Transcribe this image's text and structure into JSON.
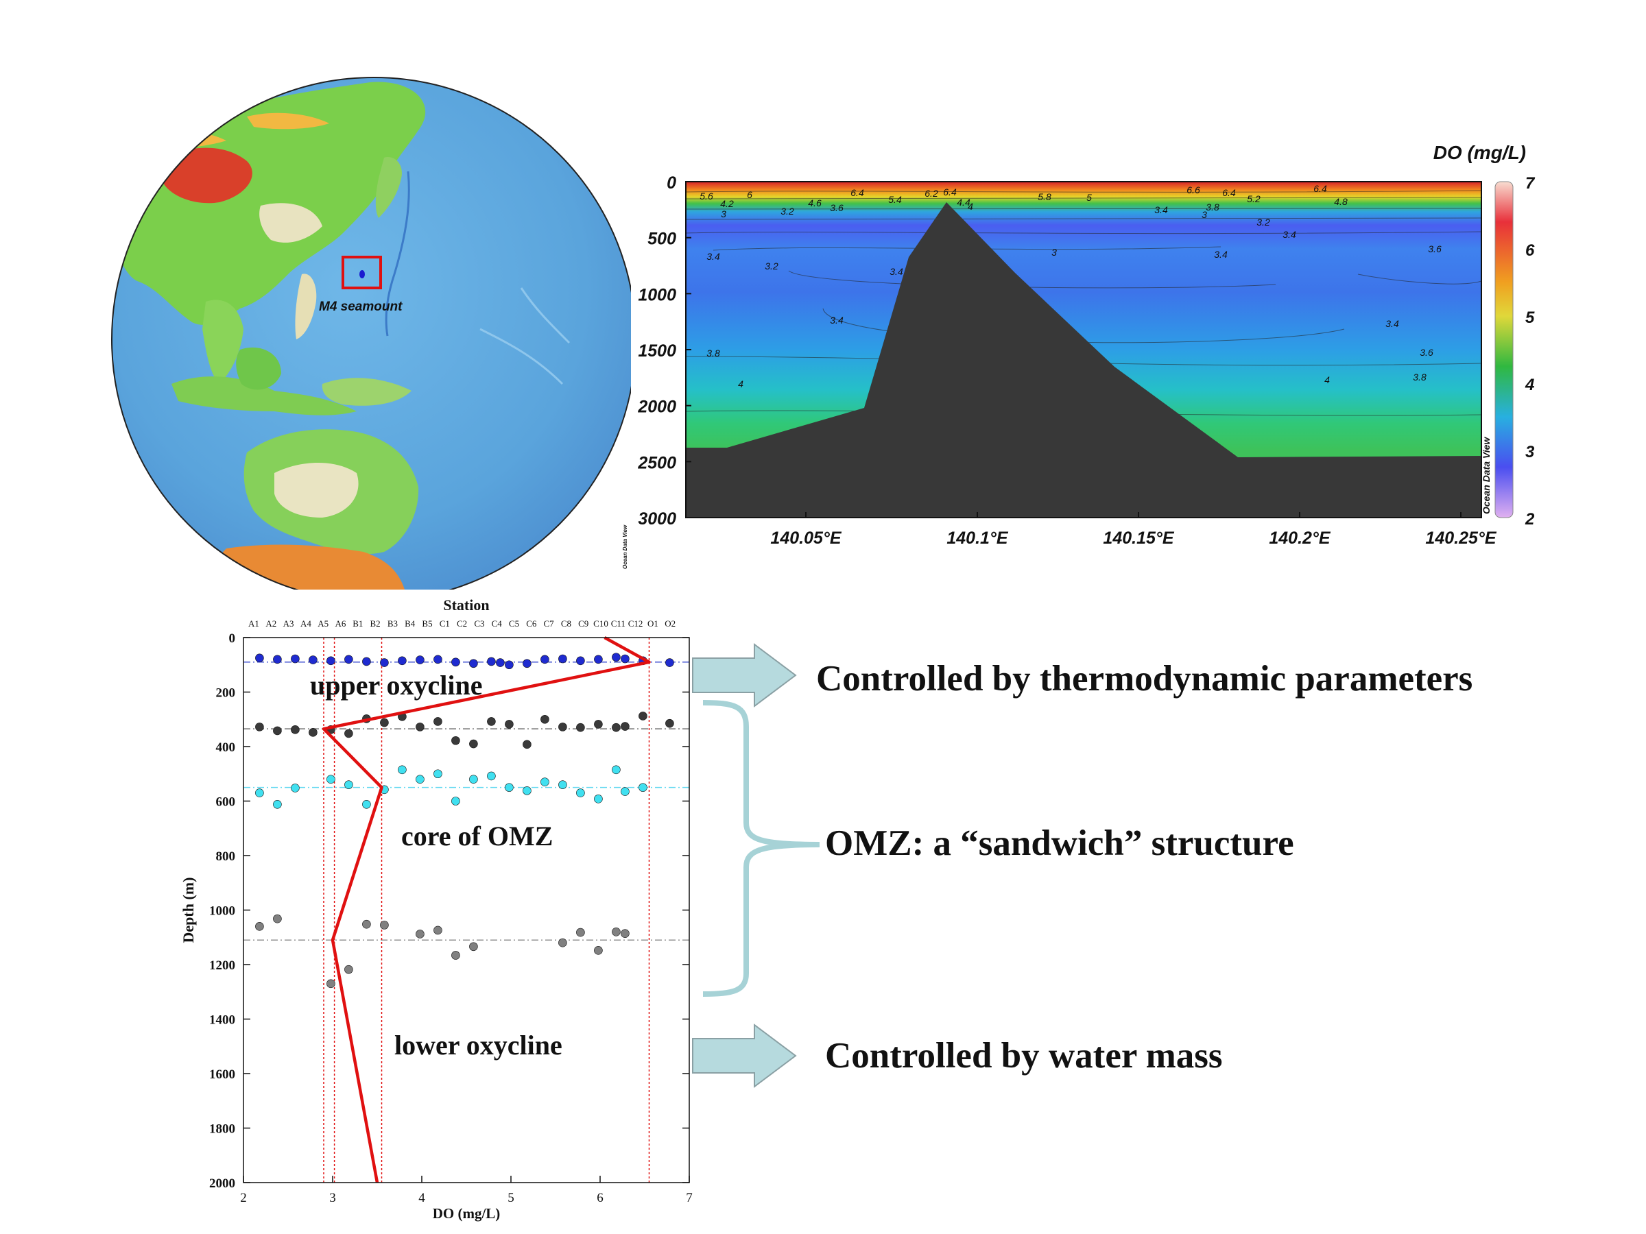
{
  "globe": {
    "label": "M4 seamount",
    "marker_color": "#e01010"
  },
  "section": {
    "colorbar_title": "DO (mg/L)",
    "colorbar_ticks": [
      "7",
      "6",
      "5",
      "4",
      "3",
      "2"
    ],
    "y_ticks": [
      "0",
      "500",
      "1000",
      "1500",
      "2000",
      "2500",
      "3000"
    ],
    "x_ticks": [
      "140.05°E",
      "140.1°E",
      "140.15°E",
      "140.2°E",
      "140.25°E"
    ],
    "watermark": "Ocean Data View",
    "contour_labels": [
      "5.6",
      "6",
      "4.2",
      "3",
      "4.6",
      "3.2",
      "6.4",
      "3.6",
      "5.4",
      "6.2",
      "4.4",
      "6.4",
      "4",
      "5.8",
      "5",
      "6.6",
      "6.4",
      "3.8",
      "5.2",
      "6.4",
      "4.8",
      "3.4",
      "3",
      "3.2",
      "3.4",
      "3.4",
      "3.2",
      "3.4",
      "3",
      "3.4",
      "3.6",
      "3.4",
      "3.6",
      "3.4",
      "3.8",
      "3.8",
      "4",
      "4"
    ],
    "colors": {
      "surface": "#d8232a",
      "deep_blue": "#3f72e8",
      "green": "#30c060",
      "seamount": "#383838"
    }
  },
  "chart_data": {
    "type": "scatter",
    "title": "Station",
    "xlabel": "DO (mg/L)",
    "ylabel": "Depth (m)",
    "xlim": [
      2,
      7
    ],
    "ylim": [
      2000,
      0
    ],
    "x_ticks": [
      "2",
      "3",
      "4",
      "5",
      "6",
      "7"
    ],
    "y_ticks": [
      "0",
      "200",
      "400",
      "600",
      "800",
      "1000",
      "1200",
      "1400",
      "1600",
      "1800",
      "2000"
    ],
    "stations": [
      "A1",
      "A2",
      "A3",
      "A4",
      "A5",
      "A6",
      "B1",
      "B2",
      "B3",
      "B4",
      "B5",
      "C1",
      "C2",
      "C3",
      "C4",
      "C5",
      "C6",
      "C7",
      "C8",
      "C9",
      "C10",
      "C11",
      "C12",
      "O1",
      "O2"
    ],
    "series": [
      {
        "name": "",
        "color": "#1f2bd0",
        "points": [
          [
            2.18,
            75
          ],
          [
            2.38,
            80
          ],
          [
            2.58,
            78
          ],
          [
            2.78,
            82
          ],
          [
            2.98,
            85
          ],
          [
            3.18,
            80
          ],
          [
            3.38,
            88
          ],
          [
            3.58,
            92
          ],
          [
            3.78,
            85
          ],
          [
            3.98,
            82
          ],
          [
            4.18,
            80
          ],
          [
            4.38,
            90
          ],
          [
            4.58,
            95
          ],
          [
            4.78,
            88
          ],
          [
            4.98,
            100
          ],
          [
            5.18,
            95
          ],
          [
            5.38,
            80
          ],
          [
            5.58,
            78
          ],
          [
            5.78,
            85
          ],
          [
            5.98,
            80
          ],
          [
            6.18,
            72
          ],
          [
            6.28,
            78
          ],
          [
            6.48,
            85
          ],
          [
            6.78,
            92
          ],
          [
            4.88,
            92
          ]
        ]
      },
      {
        "name": "",
        "color": "#3a3a3a",
        "points": [
          [
            2.18,
            328
          ],
          [
            2.38,
            342
          ],
          [
            2.58,
            338
          ],
          [
            2.78,
            348
          ],
          [
            2.98,
            338
          ],
          [
            3.18,
            352
          ],
          [
            3.38,
            298
          ],
          [
            3.58,
            312
          ],
          [
            3.78,
            290
          ],
          [
            3.98,
            328
          ],
          [
            4.18,
            308
          ],
          [
            4.38,
            378
          ],
          [
            4.58,
            390
          ],
          [
            4.78,
            308
          ],
          [
            4.98,
            318
          ],
          [
            5.18,
            392
          ],
          [
            5.38,
            300
          ],
          [
            5.58,
            328
          ],
          [
            5.78,
            330
          ],
          [
            5.98,
            318
          ],
          [
            6.18,
            330
          ],
          [
            6.28,
            326
          ],
          [
            6.48,
            288
          ],
          [
            6.78,
            315
          ]
        ]
      },
      {
        "name": "",
        "color": "#40e0f0",
        "points": [
          [
            2.18,
            570
          ],
          [
            2.38,
            612
          ],
          [
            2.58,
            552
          ],
          [
            2.98,
            520
          ],
          [
            3.18,
            540
          ],
          [
            3.38,
            612
          ],
          [
            3.58,
            558
          ],
          [
            3.78,
            485
          ],
          [
            3.98,
            520
          ],
          [
            4.18,
            500
          ],
          [
            4.38,
            600
          ],
          [
            4.58,
            520
          ],
          [
            4.78,
            508
          ],
          [
            4.98,
            550
          ],
          [
            5.18,
            562
          ],
          [
            5.38,
            530
          ],
          [
            5.58,
            540
          ],
          [
            5.78,
            570
          ],
          [
            5.98,
            592
          ],
          [
            6.18,
            485
          ],
          [
            6.28,
            565
          ],
          [
            6.48,
            550
          ]
        ]
      },
      {
        "name": "",
        "color": "#808080",
        "points": [
          [
            2.18,
            1060
          ],
          [
            2.38,
            1032
          ],
          [
            3.38,
            1052
          ],
          [
            3.58,
            1055
          ],
          [
            3.98,
            1088
          ],
          [
            4.18,
            1074
          ],
          [
            4.38,
            1166
          ],
          [
            4.58,
            1134
          ],
          [
            5.58,
            1120
          ],
          [
            5.78,
            1082
          ],
          [
            5.98,
            1148
          ],
          [
            6.18,
            1080
          ],
          [
            6.28,
            1086
          ],
          [
            3.18,
            1218
          ],
          [
            2.98,
            1270
          ]
        ]
      }
    ],
    "profile_line": {
      "name": "",
      "color": "#e01010",
      "points": [
        [
          6.05,
          0
        ],
        [
          6.55,
          90
        ],
        [
          2.9,
          335
        ],
        [
          3.55,
          550
        ],
        [
          3.0,
          1110
        ],
        [
          3.5,
          2000
        ]
      ]
    },
    "reference_depths": [
      90,
      335,
      550,
      1110
    ],
    "reference_do": [
      2.9,
      3.02,
      3.55,
      6.55
    ],
    "annotations": [
      "upper oxycline",
      "core of OMZ",
      "lower oxycline"
    ]
  },
  "callouts": {
    "upper": "Controlled by thermodynamic parameters",
    "omz": "OMZ: a “sandwich” structure",
    "lower": "Controlled by water mass",
    "arrow_color": "#b6dade"
  }
}
